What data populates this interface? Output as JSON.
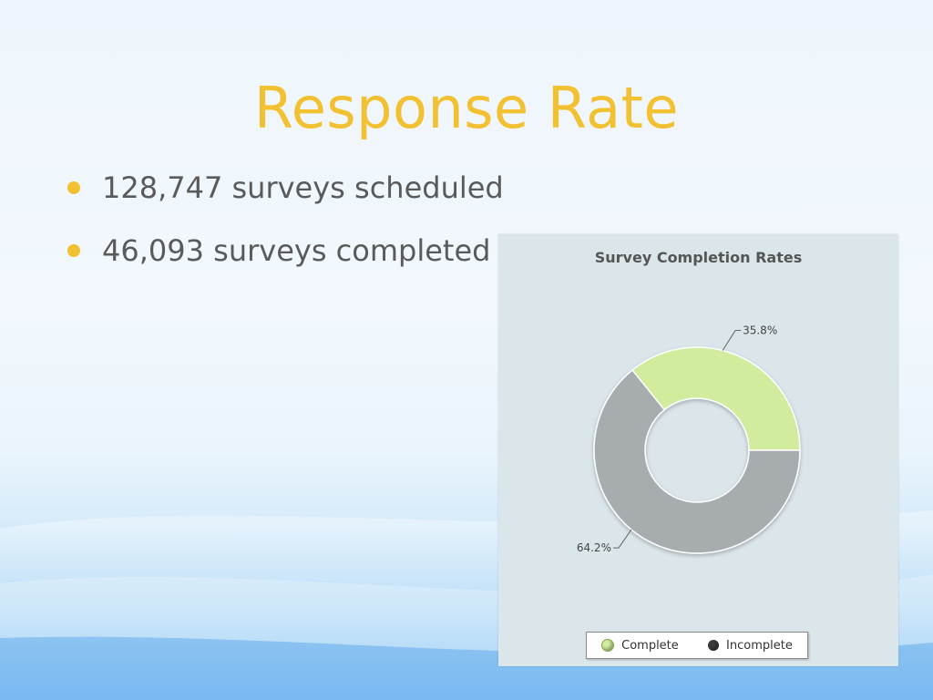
{
  "slide": {
    "title": "Response Rate",
    "bullets": [
      "128,747 surveys scheduled",
      "46,093 surveys completed"
    ]
  },
  "colors": {
    "title": "#f2c132",
    "bullet_marker": "#f2c132",
    "complete": "#d2ec9e",
    "incomplete": "#a7adaf",
    "panel_background": "#dbe6ea"
  },
  "chart_data": {
    "type": "pie",
    "style": "donut",
    "title": "Survey Completion Rates",
    "categories": [
      "Complete",
      "Incomplete"
    ],
    "values": [
      35.8,
      64.2
    ],
    "data_labels": [
      "35.8%",
      "64.2%"
    ],
    "legend": {
      "placement": "bottom",
      "entries": [
        "Complete",
        "Incomplete"
      ]
    }
  }
}
